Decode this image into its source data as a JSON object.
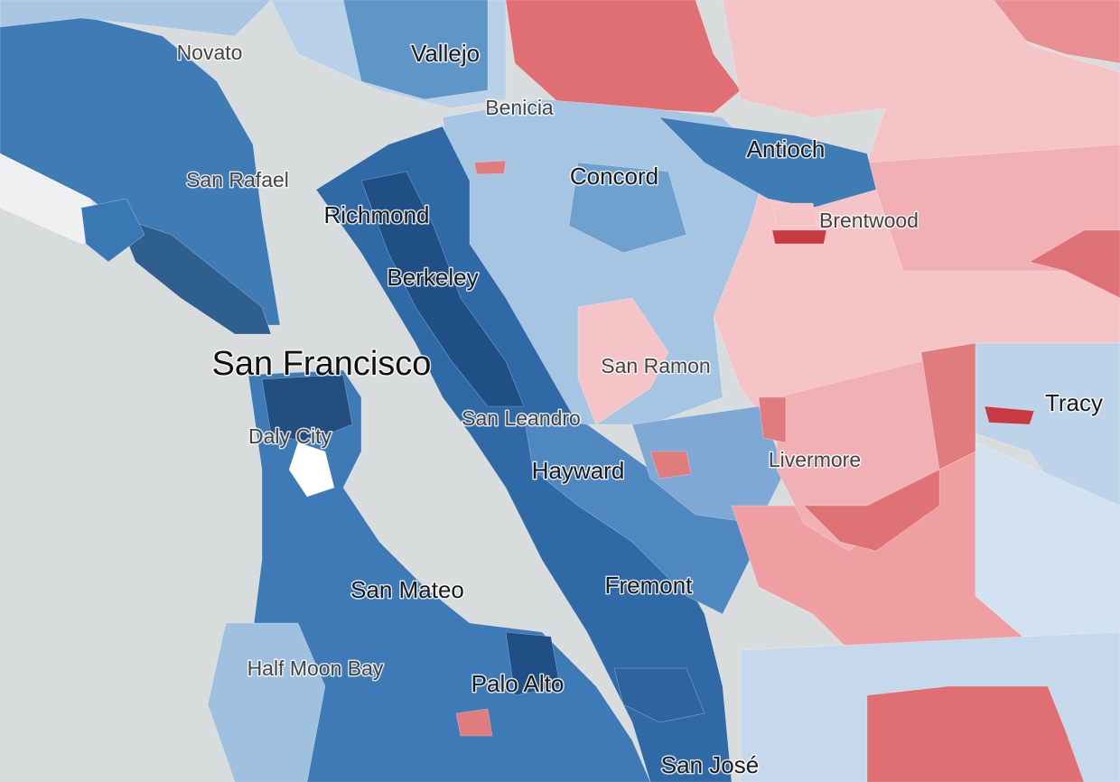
{
  "major_cities": [
    "Vallejo",
    "Concord",
    "Antioch",
    "Richmond",
    "Berkeley",
    "San Francisco",
    "Hayward",
    "Fremont",
    "San Mateo",
    "Palo Alto",
    "San José",
    "Tracy"
  ],
  "minor_cities": [
    "Novato",
    "Benicia",
    "San Rafael",
    "Brentwood",
    "San Ramon",
    "San Leandro",
    "Daly City",
    "Livermore",
    "Half Moon Bay"
  ]
}
